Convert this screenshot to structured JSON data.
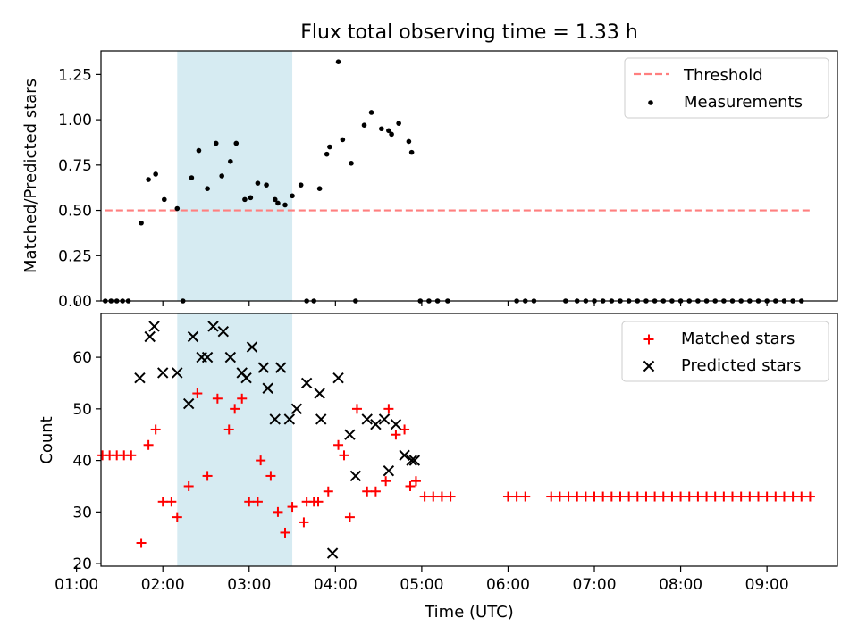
{
  "figure": {
    "title": "Flux total observing time = 1.33 h",
    "xlabel": "Time (UTC)"
  },
  "colors": {
    "shade": "#add8e6",
    "threshold": "#ff7f7f",
    "measurements": "#000000",
    "matched": "#ff0000",
    "predicted": "#000000"
  },
  "chart_data": [
    {
      "type": "scatter",
      "ylabel": "Matched/Predicted stars",
      "xlim": [
        "01:17",
        "09:49"
      ],
      "ylim": [
        0,
        1.38
      ],
      "yticks": [
        0.0,
        0.25,
        0.5,
        0.75,
        1.0,
        1.25
      ],
      "ytick_labels": [
        "0.00",
        "0.25",
        "0.50",
        "0.75",
        "1.00",
        "1.25"
      ],
      "xticks": [
        "01:00",
        "02:00",
        "03:00",
        "04:00",
        "05:00",
        "06:00",
        "07:00",
        "08:00",
        "09:00"
      ],
      "shaded_span": [
        "02:10",
        "03:30"
      ],
      "legend_position": "upper right",
      "series": [
        {
          "name": "Threshold",
          "kind": "dashed-line",
          "x": [
            "01:20",
            "09:30"
          ],
          "y": [
            0.5,
            0.5
          ]
        },
        {
          "name": "Measurements",
          "kind": "points",
          "x": [
            "01:20",
            "01:24",
            "01:28",
            "01:32",
            "01:36",
            "01:45",
            "01:50",
            "01:55",
            "02:01",
            "02:10",
            "02:14",
            "02:20",
            "02:25",
            "02:31",
            "02:37",
            "02:41",
            "02:47",
            "02:51",
            "02:57",
            "03:01",
            "03:06",
            "03:12",
            "03:18",
            "03:20",
            "03:25",
            "03:30",
            "03:36",
            "03:40",
            "03:45",
            "03:49",
            "03:54",
            "03:56",
            "04:02",
            "04:05",
            "04:11",
            "04:14",
            "04:20",
            "04:25",
            "04:32",
            "04:37",
            "04:39",
            "04:44",
            "04:51",
            "04:53",
            "04:59",
            "05:05",
            "05:11",
            "05:18",
            "06:06",
            "06:12",
            "06:18",
            "06:40",
            "06:48",
            "06:54",
            "07:00",
            "07:06",
            "07:12",
            "07:18",
            "07:24",
            "07:30",
            "07:36",
            "07:42",
            "07:48",
            "07:54",
            "08:00",
            "08:06",
            "08:12",
            "08:18",
            "08:24",
            "08:30",
            "08:36",
            "08:42",
            "08:48",
            "08:54",
            "09:00",
            "09:06",
            "09:12",
            "09:18",
            "09:24"
          ],
          "y": [
            0,
            0,
            0,
            0,
            0,
            0.43,
            0.67,
            0.7,
            0.56,
            0.51,
            0,
            0.68,
            0.83,
            0.62,
            0.87,
            0.69,
            0.77,
            0.87,
            0.56,
            0.57,
            0.65,
            0.64,
            0.56,
            0.54,
            0.53,
            0.58,
            0.64,
            0,
            0,
            0.62,
            0.81,
            0.85,
            1.32,
            0.89,
            0.76,
            0,
            0.97,
            1.04,
            0.95,
            0.94,
            0.92,
            0.98,
            0.88,
            0.82,
            0,
            0,
            0,
            0,
            0,
            0,
            0,
            0,
            0,
            0,
            0,
            0,
            0,
            0,
            0,
            0,
            0,
            0,
            0,
            0,
            0,
            0,
            0,
            0,
            0,
            0,
            0,
            0,
            0,
            0,
            0,
            0,
            0,
            0,
            0
          ]
        }
      ]
    },
    {
      "type": "scatter",
      "ylabel": "Count",
      "xlim": [
        "01:17",
        "09:49"
      ],
      "ylim": [
        19.5,
        68.5
      ],
      "yticks": [
        20,
        30,
        40,
        50,
        60
      ],
      "ytick_labels": [
        "20",
        "30",
        "40",
        "50",
        "60"
      ],
      "xticks": [
        "01:00",
        "02:00",
        "03:00",
        "04:00",
        "05:00",
        "06:00",
        "07:00",
        "08:00",
        "09:00"
      ],
      "xtick_labels": [
        "01:00",
        "02:00",
        "03:00",
        "04:00",
        "05:00",
        "06:00",
        "07:00",
        "08:00",
        "09:00"
      ],
      "shaded_span": [
        "02:10",
        "03:30"
      ],
      "legend_position": "upper right",
      "series": [
        {
          "name": "Matched stars",
          "marker": "plus",
          "x": [
            "01:18",
            "01:23",
            "01:28",
            "01:33",
            "01:38",
            "01:45",
            "01:50",
            "01:55",
            "02:00",
            "02:06",
            "02:10",
            "02:18",
            "02:24",
            "02:31",
            "02:38",
            "02:46",
            "02:50",
            "02:55",
            "03:00",
            "03:06",
            "03:08",
            "03:15",
            "03:20",
            "03:25",
            "03:30",
            "03:38",
            "03:40",
            "03:45",
            "03:48",
            "03:55",
            "04:02",
            "04:06",
            "04:10",
            "04:15",
            "04:22",
            "04:28",
            "04:35",
            "04:37",
            "04:42",
            "04:48",
            "04:52",
            "04:56",
            "05:02",
            "05:08",
            "05:14",
            "05:20",
            "06:00",
            "06:06",
            "06:12",
            "06:30",
            "06:36",
            "06:42",
            "06:48",
            "06:54",
            "07:00",
            "07:06",
            "07:12",
            "07:18",
            "07:24",
            "07:30",
            "07:36",
            "07:42",
            "07:48",
            "07:54",
            "08:00",
            "08:06",
            "08:12",
            "08:18",
            "08:24",
            "08:30",
            "08:36",
            "08:42",
            "08:48",
            "08:54",
            "09:00",
            "09:06",
            "09:12",
            "09:18",
            "09:24",
            "09:30"
          ],
          "y": [
            41,
            41,
            41,
            41,
            41,
            24,
            43,
            46,
            32,
            32,
            29,
            35,
            53,
            37,
            52,
            46,
            50,
            52,
            32,
            32,
            40,
            37,
            30,
            26,
            31,
            28,
            32,
            32,
            32,
            34,
            43,
            41,
            29,
            50,
            34,
            34,
            36,
            50,
            45,
            46,
            35,
            36,
            33,
            33,
            33,
            33,
            33,
            33,
            33,
            33,
            33,
            33,
            33,
            33,
            33,
            33,
            33,
            33,
            33,
            33,
            33,
            33,
            33,
            33,
            33,
            33,
            33,
            33,
            33,
            33,
            33,
            33,
            33,
            33,
            33,
            33,
            33,
            33,
            33,
            33
          ]
        },
        {
          "name": "Predicted stars",
          "marker": "x",
          "x": [
            "01:44",
            "01:51",
            "01:54",
            "02:00",
            "02:10",
            "02:18",
            "02:21",
            "02:27",
            "02:31",
            "02:35",
            "02:42",
            "02:47",
            "02:55",
            "02:58",
            "03:02",
            "03:10",
            "03:13",
            "03:18",
            "03:22",
            "03:28",
            "03:33",
            "03:40",
            "03:49",
            "03:50",
            "03:58",
            "04:02",
            "04:10",
            "04:14",
            "04:22",
            "04:28",
            "04:34",
            "04:37",
            "04:42",
            "04:48",
            "04:53",
            "04:55"
          ],
          "y": [
            56,
            64,
            66,
            57,
            57,
            51,
            64,
            60,
            60,
            66,
            65,
            60,
            57,
            56,
            62,
            58,
            54,
            48,
            58,
            48,
            50,
            55,
            53,
            48,
            22,
            56,
            45,
            37,
            48,
            47,
            48,
            38,
            47,
            41,
            40,
            40
          ]
        }
      ]
    }
  ]
}
